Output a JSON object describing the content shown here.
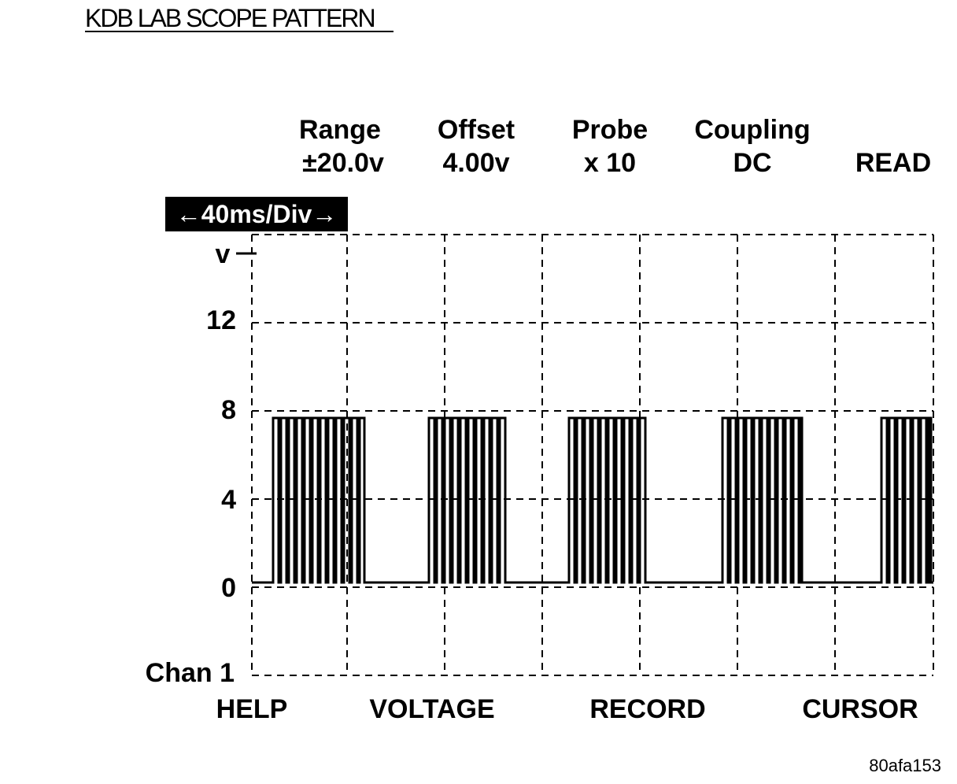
{
  "title": "KDB LAB SCOPE PATTERN",
  "settings": [
    {
      "label": "Range",
      "value": "±20.0v"
    },
    {
      "label": "Offset",
      "value": "4.00v"
    },
    {
      "label": "Probe",
      "value": "x 10"
    },
    {
      "label": "Coupling",
      "value": "DC"
    }
  ],
  "mode": "READ",
  "timebase": "←40ms/Div→",
  "y_axis": {
    "unit": "v",
    "labels": [
      "12",
      "8",
      "4",
      "0"
    ]
  },
  "channel": "Chan 1",
  "softkeys": [
    "HELP",
    "VOLTAGE",
    "RECORD",
    "CURSOR"
  ],
  "figure_id": "80afa153"
}
